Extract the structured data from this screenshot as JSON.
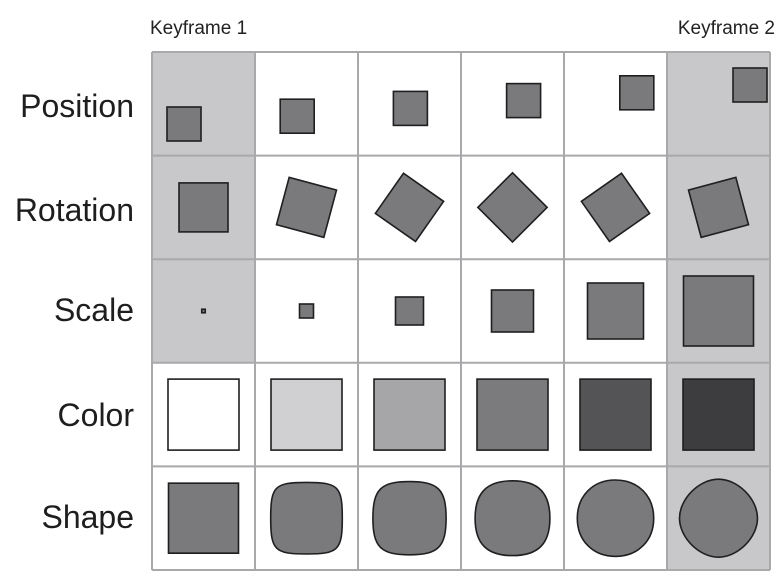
{
  "keyframes": {
    "start_label": "Keyframe 1",
    "end_label": "Keyframe 2"
  },
  "rows": [
    {
      "label": "Position"
    },
    {
      "label": "Rotation"
    },
    {
      "label": "Scale"
    },
    {
      "label": "Color"
    },
    {
      "label": "Shape"
    }
  ],
  "steps": 6,
  "rotation_degrees": [
    0,
    15,
    35,
    45,
    55,
    75
  ],
  "scale_fraction": [
    0.05,
    0.2,
    0.4,
    0.6,
    0.8,
    1.0
  ],
  "color_values": [
    "#ffffff",
    "#d0d0d2",
    "#a6a6a9",
    "#7b7b7e",
    "#545456",
    "#3d3d3f"
  ],
  "shape_roundness": [
    0,
    0.2,
    0.4,
    0.6,
    0.8,
    1.0
  ],
  "colors": {
    "shape_fill": "#7a7a7d",
    "shape_stroke": "#1f1f1f",
    "keyframe_cell": "#c8c8ca",
    "inbetween_cell": "#ffffff",
    "grid_line": "#a9a9ab"
  }
}
